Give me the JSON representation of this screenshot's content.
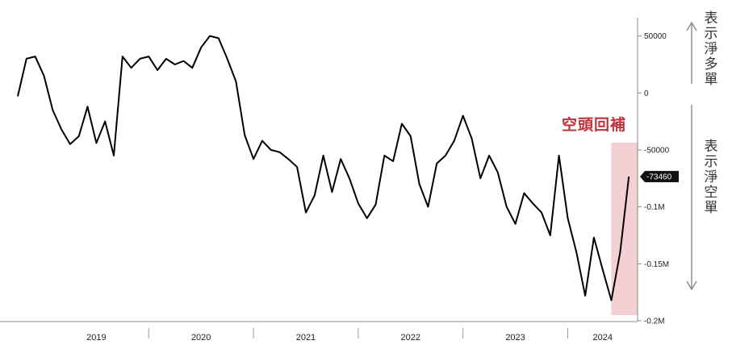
{
  "chart_data": {
    "type": "line",
    "x_start": "2018-10",
    "x_end": "2024-09",
    "ylim": [
      -200000,
      66000
    ],
    "y_ticks": [
      {
        "value": 50000,
        "label": "50000"
      },
      {
        "value": 0,
        "label": "0"
      },
      {
        "value": -50000,
        "label": "-50000"
      },
      {
        "value": -100000,
        "label": "-0.1M"
      },
      {
        "value": -150000,
        "label": "-0.15M"
      },
      {
        "value": -200000,
        "label": "-0.2M"
      }
    ],
    "year_labels": [
      "2019",
      "2020",
      "2021",
      "2022",
      "2023",
      "2024"
    ],
    "last_value_label": "-73460",
    "highlight_label": "空頭回補",
    "highlight_range": [
      "2024-06",
      "2024-09"
    ],
    "series": [
      {
        "values": [
          [
            "2018-10",
            -3000
          ],
          [
            "2018-11",
            30000
          ],
          [
            "2018-12",
            32000
          ],
          [
            "2019-01",
            15000
          ],
          [
            "2019-02",
            -15000
          ],
          [
            "2019-03",
            -32000
          ],
          [
            "2019-04",
            -45000
          ],
          [
            "2019-05",
            -38000
          ],
          [
            "2019-06",
            -12000
          ],
          [
            "2019-07",
            -44000
          ],
          [
            "2019-08",
            -25000
          ],
          [
            "2019-09",
            -55000
          ],
          [
            "2019-10",
            32000
          ],
          [
            "2019-11",
            22000
          ],
          [
            "2019-12",
            30000
          ],
          [
            "2020-01",
            32000
          ],
          [
            "2020-02",
            20000
          ],
          [
            "2020-03",
            30000
          ],
          [
            "2020-04",
            25000
          ],
          [
            "2020-05",
            28000
          ],
          [
            "2020-06",
            22000
          ],
          [
            "2020-07",
            40000
          ],
          [
            "2020-08",
            50000
          ],
          [
            "2020-09",
            48000
          ],
          [
            "2020-10",
            30000
          ],
          [
            "2020-11",
            10000
          ],
          [
            "2020-12",
            -37000
          ],
          [
            "2021-01",
            -58000
          ],
          [
            "2021-02",
            -42000
          ],
          [
            "2021-03",
            -50000
          ],
          [
            "2021-04",
            -52000
          ],
          [
            "2021-05",
            -58000
          ],
          [
            "2021-06",
            -65000
          ],
          [
            "2021-07",
            -105000
          ],
          [
            "2021-08",
            -90000
          ],
          [
            "2021-09",
            -55000
          ],
          [
            "2021-10",
            -87000
          ],
          [
            "2021-11",
            -58000
          ],
          [
            "2021-12",
            -75000
          ],
          [
            "2022-01",
            -97000
          ],
          [
            "2022-02",
            -110000
          ],
          [
            "2022-03",
            -98000
          ],
          [
            "2022-04",
            -55000
          ],
          [
            "2022-05",
            -60000
          ],
          [
            "2022-06",
            -27000
          ],
          [
            "2022-07",
            -38000
          ],
          [
            "2022-08",
            -80000
          ],
          [
            "2022-09",
            -100000
          ],
          [
            "2022-10",
            -62000
          ],
          [
            "2022-11",
            -55000
          ],
          [
            "2022-12",
            -42000
          ],
          [
            "2023-01",
            -20000
          ],
          [
            "2023-02",
            -40000
          ],
          [
            "2023-03",
            -75000
          ],
          [
            "2023-04",
            -55000
          ],
          [
            "2023-05",
            -70000
          ],
          [
            "2023-06",
            -100000
          ],
          [
            "2023-07",
            -115000
          ],
          [
            "2023-08",
            -88000
          ],
          [
            "2023-09",
            -97000
          ],
          [
            "2023-10",
            -105000
          ],
          [
            "2023-11",
            -125000
          ],
          [
            "2023-12",
            -55000
          ],
          [
            "2024-01",
            -110000
          ],
          [
            "2024-02",
            -140000
          ],
          [
            "2024-03",
            -178000
          ],
          [
            "2024-04",
            -127000
          ],
          [
            "2024-05",
            -155000
          ],
          [
            "2024-06",
            -182000
          ],
          [
            "2024-07",
            -140000
          ],
          [
            "2024-08",
            -73460
          ]
        ]
      }
    ]
  },
  "annotations": {
    "net_long": "表示淨多單",
    "net_short": "表示淨空單"
  },
  "colors": {
    "line": "#000000",
    "highlight": "#f4cfd4",
    "highlight_text": "#c0323c",
    "axis": "#888888",
    "last_label_bg": "#111111",
    "last_label_text": "#ffffff"
  }
}
